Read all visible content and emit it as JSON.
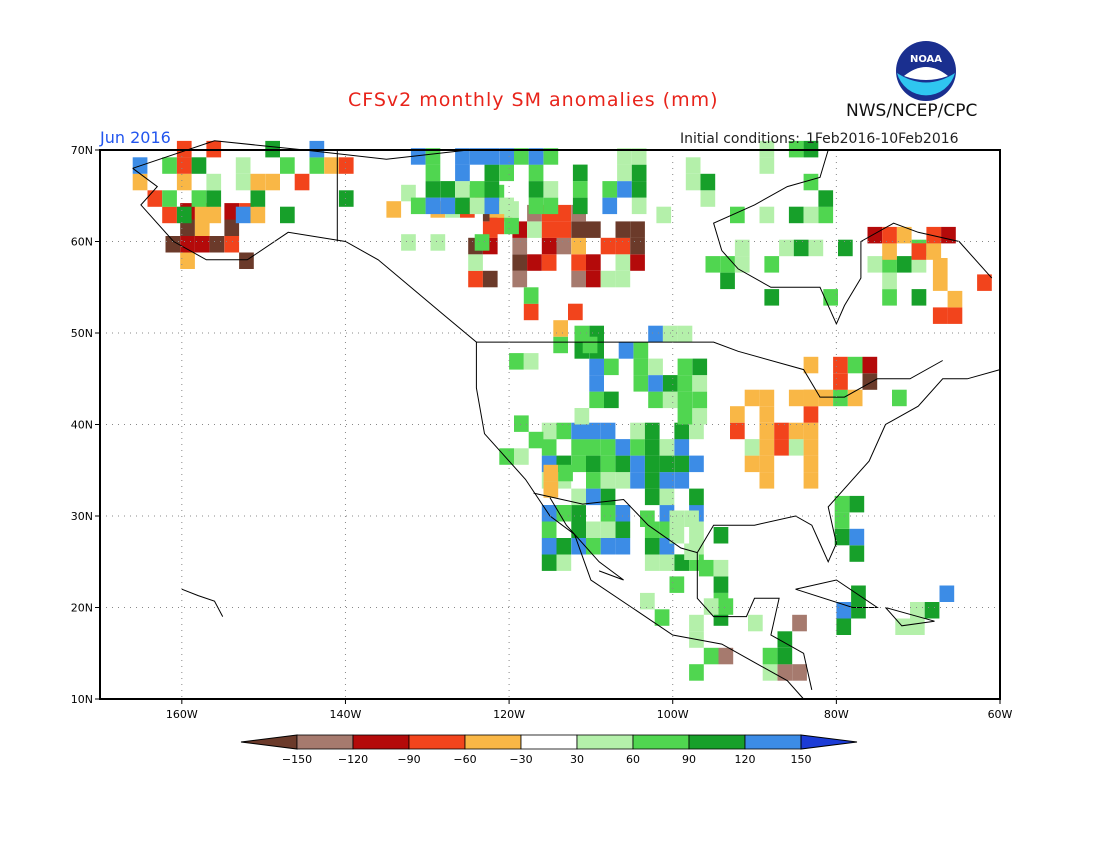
{
  "header": {
    "title": "CFSv2 monthly SM anomalies (mm)",
    "agency": "NWS/NCEP/CPC",
    "logo_text": "NOAA",
    "month": "Jun 2016",
    "ic_label": "Initial conditions:",
    "ic_value": "1Feb2016-10Feb2016"
  },
  "map": {
    "lat_ticks": [
      "70N",
      "60N",
      "50N",
      "40N",
      "30N",
      "20N",
      "10N"
    ],
    "lon_ticks": [
      "160W",
      "140W",
      "120W",
      "100W",
      "80W",
      "60W"
    ],
    "lat_range": [
      10,
      70
    ],
    "lon_range": [
      -170,
      -60
    ],
    "grid": true
  },
  "colorbar": {
    "labels": [
      "-150",
      "-120",
      "-90",
      "-60",
      "-30",
      "30",
      "60",
      "90",
      "120",
      "150"
    ],
    "colors": [
      "#6b3a2a",
      "#a67a6e",
      "#b40a0a",
      "#f2441c",
      "#f9b746",
      "#ffffff",
      "#b4f0aa",
      "#50d650",
      "#17a02a",
      "#3c8ce6",
      "#1c3cd6"
    ]
  },
  "chart_data": {
    "type": "heatmap",
    "title": "CFSv2 monthly SM anomalies (mm)",
    "valid": "Jun 2016",
    "initial_conditions": "1Feb2016-10Feb2016",
    "units": "mm",
    "xlim": [
      -170,
      -60
    ],
    "ylim": [
      10,
      70
    ],
    "bins": [
      "<-150",
      "-150 to -120",
      "-120 to -90",
      "-90 to -60",
      "-60 to -30",
      "-30 to 30",
      "30 to 60",
      "60 to 90",
      "90 to 120",
      "120 to 150",
      ">150"
    ],
    "regions": [
      {
        "lon": [
          -116,
          -96
        ],
        "lat": [
          24,
          40
        ],
        "range": "60 to 150+"
      },
      {
        "lon": [
          -93,
          -84
        ],
        "lat": [
          33,
          42
        ],
        "range": "-30 to -60"
      },
      {
        "lon": [
          -84,
          -70
        ],
        "lat": [
          42,
          47
        ],
        "range": "-60 to -120"
      },
      {
        "lon": [
          -125,
          -104
        ],
        "lat": [
          56,
          62
        ],
        "range": "-60 to -150"
      },
      {
        "lon": [
          -161,
          -153
        ],
        "lat": [
          57,
          61
        ],
        "range": "-60 to -120"
      },
      {
        "lon": [
          -78,
          -66
        ],
        "lat": [
          58,
          61
        ],
        "range": "-60 to -90"
      },
      {
        "lon": [
          -70,
          -62
        ],
        "lat": [
          51,
          57
        ],
        "range": "-30 to -60"
      },
      {
        "lon": [
          -130,
          -105
        ],
        "lat": [
          62,
          70
        ],
        "range": "30 to 150"
      },
      {
        "lon": [
          -98,
          -86
        ],
        "lat": [
          12,
          22
        ],
        "range": "30 to 90"
      }
    ]
  }
}
